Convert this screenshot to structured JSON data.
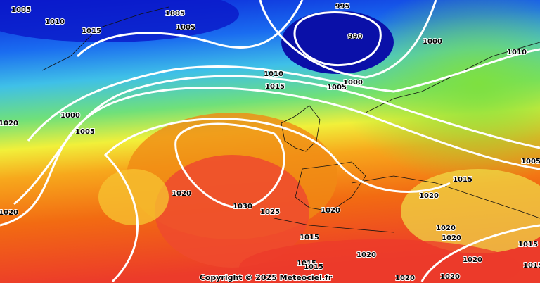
{
  "map": {
    "isobar_labels": [
      "1005",
      "1010",
      "1015",
      "1005",
      "1005",
      "995",
      "990",
      "1000",
      "1010",
      "1010",
      "1015",
      "1005",
      "1000",
      "1000",
      "1020",
      "1005",
      "1020",
      "1030",
      "1025",
      "1020",
      "1020",
      "1015",
      "1005",
      "1020",
      "1015",
      "1020",
      "1020",
      "1020",
      "1015",
      "1020",
      "1015",
      "1015",
      "1020",
      "1020",
      "1015"
    ],
    "copyright": "Copyright © 2025 Meteociel.fr"
  }
}
